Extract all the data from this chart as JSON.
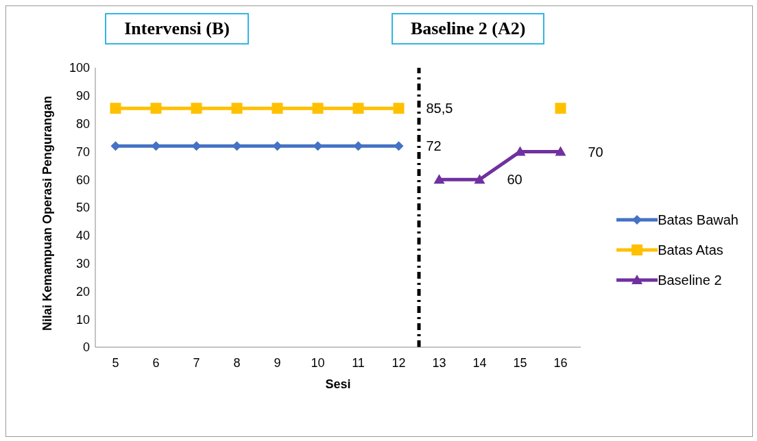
{
  "chart_data": {
    "type": "line",
    "xlabel": "Sesi",
    "ylabel": "Nilai Kemampuan Operasi Pengurangan",
    "x": [
      5,
      6,
      7,
      8,
      9,
      10,
      11,
      12,
      13,
      14,
      15,
      16
    ],
    "xlim": [
      4.5,
      16.5
    ],
    "xticks": [
      5,
      6,
      7,
      8,
      9,
      10,
      11,
      12,
      13,
      14,
      15,
      16
    ],
    "ylim": [
      0,
      100
    ],
    "yticks": [
      0,
      10,
      20,
      30,
      40,
      50,
      60,
      70,
      80,
      90,
      100
    ],
    "grid": false,
    "legend": "right",
    "series": [
      {
        "name": "Batas Bawah",
        "color": "#4472c4",
        "marker": "diamond",
        "values": [
          72,
          72,
          72,
          72,
          72,
          72,
          72,
          72,
          null,
          null,
          null,
          null
        ]
      },
      {
        "name": "Batas Atas",
        "color": "#ffc000",
        "marker": "square",
        "values": [
          85.5,
          85.5,
          85.5,
          85.5,
          85.5,
          85.5,
          85.5,
          85.5,
          null,
          null,
          null,
          85.5
        ]
      },
      {
        "name": "Baseline 2",
        "color": "#7030a0",
        "marker": "triangle",
        "values": [
          null,
          null,
          null,
          null,
          null,
          null,
          null,
          null,
          60,
          60,
          70,
          70
        ]
      }
    ],
    "ref_lines": [
      {
        "axis": "x",
        "value": 12.5,
        "color": "#000000",
        "line_style": "dashed"
      }
    ],
    "annotations": [
      "Intervensi (B)",
      "Baseline 2 (A2)",
      {
        "text": "85,5",
        "x": 12,
        "y": 85.5
      },
      {
        "text": "72",
        "x": 12,
        "y": 72
      },
      {
        "text": "60",
        "x": 14,
        "y": 60
      },
      {
        "text": "70",
        "x": 16,
        "y": 70
      }
    ]
  }
}
